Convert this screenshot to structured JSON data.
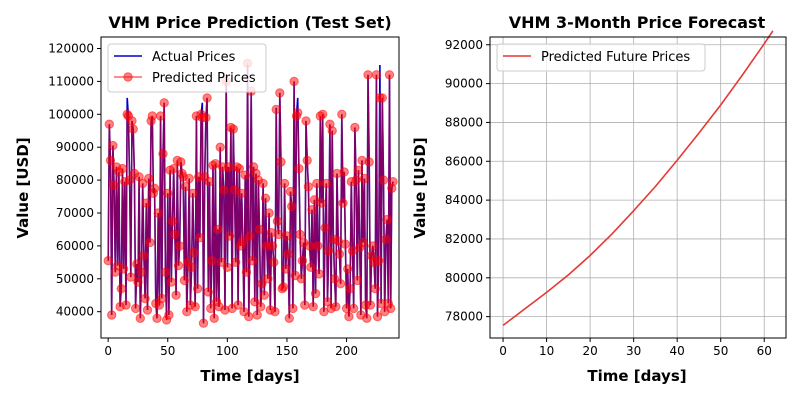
{
  "chart_data": [
    {
      "type": "line",
      "title": "VHM Price Prediction (Test Set)",
      "xlabel": "Time [days]",
      "ylabel": "Value [USD]",
      "xlim": [
        -6,
        244
      ],
      "ylim": [
        32000,
        123500
      ],
      "xticks": [
        0,
        50,
        100,
        150,
        200
      ],
      "yticks": [
        40000,
        50000,
        60000,
        70000,
        80000,
        90000,
        100000,
        110000,
        120000
      ],
      "grid": false,
      "legend": "top-left",
      "series": [
        {
          "name": "Actual Prices",
          "color": "#0000cc",
          "values": [
            55500,
            97000,
            86000,
            39000,
            90500,
            78500,
            52000,
            84000,
            54000,
            82500,
            41500,
            47000,
            83500,
            53000,
            79500,
            42000,
            105000,
            99500,
            80000,
            50500,
            98000,
            95500,
            82000,
            41000,
            54500,
            49000,
            81000,
            38000,
            52000,
            79000,
            57000,
            44000,
            73000,
            40500,
            80500,
            61000,
            98000,
            99500,
            76000,
            77500,
            42500,
            38000,
            70000,
            42000,
            99500,
            44000,
            88000,
            103500,
            52000,
            37500,
            76000,
            39000,
            83000,
            49000,
            67500,
            83500,
            63500,
            45000,
            86000,
            54000,
            60000,
            85500,
            82000,
            81000,
            49500,
            78000,
            40000,
            55000,
            80500,
            42000,
            53500,
            76000,
            58000,
            41500,
            99500,
            47000,
            81000,
            62500,
            100000,
            103500,
            36500,
            81000,
            99000,
            105000,
            46000,
            79500,
            41000,
            55500,
            84500,
            38000,
            85000,
            43000,
            65000,
            41500,
            90000,
            55000,
            84000,
            77000,
            40500,
            110000,
            53500,
            84000,
            63000,
            96000,
            41000,
            95500,
            77000,
            55000,
            84000,
            42000,
            83500,
            60000,
            76000,
            61500,
            40000,
            81500,
            52000,
            115000,
            38500,
            63000,
            107000,
            55500,
            84000,
            43000,
            82000,
            39000,
            80000,
            65000,
            41500,
            48500,
            79000,
            45000,
            74500,
            60000,
            50000,
            70000,
            40500,
            64000,
            60000,
            55000,
            40000,
            102000,
            67500,
            63500,
            106500,
            85500,
            47000,
            47500,
            79000,
            53000,
            63000,
            57500,
            38000,
            76500,
            72000,
            41000,
            110000,
            51000,
            99500,
            105000,
            83500,
            63500,
            50000,
            55500,
            61000,
            42000,
            98000,
            86000,
            78000,
            60000,
            53500,
            71000,
            41500,
            74000,
            45500,
            79000,
            60000,
            51500,
            99500,
            73000,
            100000,
            40000,
            65500,
            79000,
            43000,
            58500,
            97000,
            41000,
            95000,
            62000,
            50000,
            41500,
            82000,
            61500,
            57500,
            48500,
            100000,
            73000,
            82500,
            60500,
            41000,
            53000,
            38500,
            47000,
            79500,
            58500,
            41000,
            96000,
            80000,
            49500,
            83000,
            59500,
            39000,
            86000,
            61000,
            80500,
            42000,
            38000,
            112000,
            85500,
            42000,
            57000,
            60000,
            55000,
            47000,
            112000,
            38500,
            55500,
            115000,
            42500,
            105000,
            80000,
            40000,
            62000,
            68000,
            42500,
            112000,
            41000,
            77500,
            79500
          ]
        },
        {
          "name": "Predicted Prices",
          "color": "#ff0000",
          "values": [
            55500,
            97000,
            86000,
            39000,
            90500,
            78500,
            52000,
            84000,
            54000,
            82500,
            41500,
            47000,
            83500,
            53000,
            79500,
            42000,
            100000,
            99500,
            80000,
            50500,
            98000,
            95500,
            82000,
            41000,
            54500,
            49000,
            81000,
            38000,
            52000,
            79000,
            57000,
            44000,
            73000,
            40500,
            80500,
            61000,
            98000,
            99500,
            76000,
            77500,
            42500,
            38000,
            70000,
            42000,
            99500,
            44000,
            88000,
            103500,
            52000,
            37500,
            76000,
            39000,
            83000,
            49000,
            67500,
            83500,
            63500,
            45000,
            86000,
            54000,
            60000,
            85500,
            82000,
            81000,
            49500,
            78000,
            40000,
            55000,
            80500,
            42000,
            53500,
            76000,
            58000,
            41500,
            99500,
            47000,
            81000,
            62500,
            100000,
            99000,
            36500,
            81000,
            99000,
            105000,
            46000,
            79500,
            41000,
            55500,
            84500,
            38000,
            85000,
            43000,
            65000,
            41500,
            90000,
            55000,
            84000,
            77000,
            40500,
            110000,
            53500,
            84000,
            63000,
            96000,
            41000,
            95500,
            77000,
            55000,
            84000,
            42000,
            83500,
            60000,
            76000,
            61500,
            40000,
            81500,
            52000,
            115500,
            38500,
            63000,
            107000,
            55500,
            84000,
            43000,
            82000,
            39000,
            80000,
            65000,
            41500,
            48500,
            79000,
            45000,
            74500,
            60000,
            50000,
            70000,
            40500,
            64000,
            60000,
            55000,
            40000,
            101500,
            67500,
            63500,
            106500,
            85500,
            47000,
            47500,
            79000,
            53000,
            63000,
            57500,
            38000,
            76500,
            72000,
            41000,
            110000,
            51000,
            99500,
            100500,
            83500,
            63500,
            50000,
            55500,
            61000,
            42000,
            98000,
            86000,
            78000,
            60000,
            53500,
            71000,
            41500,
            74000,
            45500,
            79000,
            60000,
            51500,
            99500,
            73000,
            100000,
            40000,
            65500,
            79000,
            43000,
            58500,
            97000,
            41000,
            95000,
            62000,
            50000,
            41500,
            82000,
            61500,
            57500,
            48500,
            100000,
            73000,
            82500,
            60500,
            41000,
            53000,
            38500,
            47000,
            79500,
            58500,
            41000,
            96000,
            80000,
            49500,
            83000,
            59500,
            39000,
            86000,
            61000,
            80500,
            42000,
            38000,
            112000,
            85500,
            42000,
            57000,
            60000,
            55000,
            47000,
            112000,
            38500,
            55500,
            105000,
            42500,
            105000,
            80000,
            40000,
            62000,
            68000,
            42500,
            112000,
            41000,
            77500,
            79500
          ]
        }
      ]
    },
    {
      "type": "line",
      "title": "VHM 3-Month Price Forecast",
      "xlabel": "Time [days]",
      "ylabel": "Value [USD]",
      "xlim": [
        -3,
        65
      ],
      "ylim": [
        76900,
        92400
      ],
      "xticks": [
        0,
        10,
        20,
        30,
        40,
        50,
        60
      ],
      "yticks": [
        78000,
        80000,
        82000,
        84000,
        86000,
        88000,
        90000,
        92000
      ],
      "grid": true,
      "legend": "top-left",
      "series": [
        {
          "name": "Predicted Future Prices",
          "color": "#e53935",
          "x": [
            0,
            5,
            10,
            15,
            20,
            25,
            30,
            35,
            40,
            45,
            50,
            55,
            60,
            62
          ],
          "values": [
            77550,
            78400,
            79250,
            80150,
            81150,
            82250,
            83450,
            84700,
            86050,
            87450,
            88900,
            90450,
            92050,
            92720
          ]
        }
      ]
    }
  ]
}
